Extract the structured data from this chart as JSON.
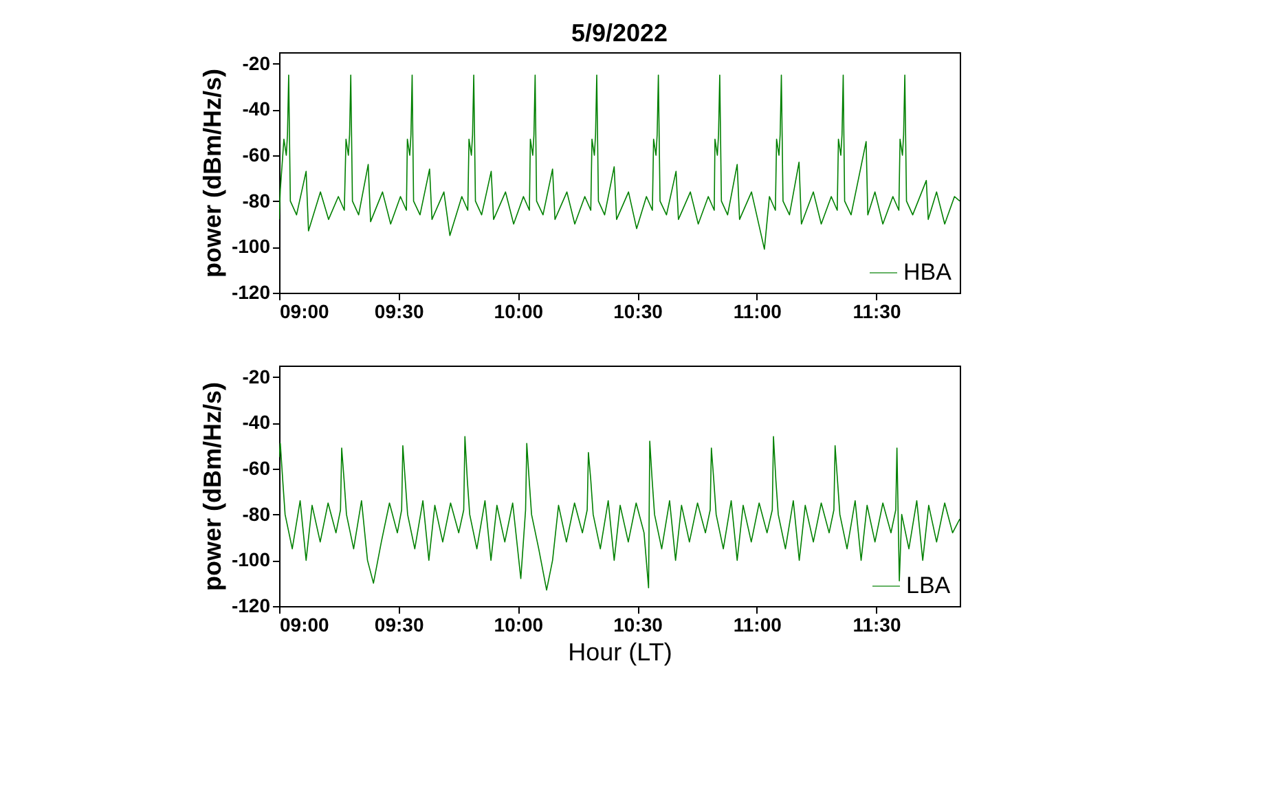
{
  "chart_data": [
    {
      "type": "line",
      "title": "5/9/2022",
      "ylabel": "power (dBm/Hz/s)",
      "legend": "bottom right",
      "xlim": [
        9,
        11.85
      ],
      "ylim": [
        -120,
        -15
      ],
      "xticks": [
        {
          "value": 9,
          "label": "09:00"
        },
        {
          "value": 9.5,
          "label": "09:30"
        },
        {
          "value": 10,
          "label": "10:00"
        },
        {
          "value": 10.5,
          "label": "10:30"
        },
        {
          "value": 11,
          "label": "11:00"
        },
        {
          "value": 11.5,
          "label": "11:30"
        }
      ],
      "yticks": [
        -120,
        -100,
        -80,
        -60,
        -40,
        -20
      ],
      "series": [
        {
          "name": "HBA",
          "color": "#008000",
          "x": [
            9.0,
            9.005,
            9.02,
            9.03,
            9.035,
            9.04,
            9.047,
            9.073,
            9.113,
            9.123,
            9.173,
            9.207,
            9.248,
            9.273,
            9.28,
            9.29,
            9.295,
            9.3,
            9.307,
            9.333,
            9.373,
            9.383,
            9.433,
            9.467,
            9.508,
            9.533,
            9.537,
            9.547,
            9.552,
            9.557,
            9.563,
            9.59,
            9.63,
            9.64,
            9.69,
            9.715,
            9.765,
            9.79,
            9.795,
            9.805,
            9.81,
            9.815,
            9.822,
            9.848,
            9.888,
            9.898,
            9.948,
            9.982,
            10.023,
            10.048,
            10.052,
            10.062,
            10.067,
            10.072,
            10.078,
            10.105,
            10.145,
            10.155,
            10.205,
            10.238,
            10.28,
            10.305,
            10.31,
            10.32,
            10.325,
            10.33,
            10.337,
            10.363,
            10.403,
            10.413,
            10.463,
            10.497,
            10.538,
            10.563,
            10.568,
            10.578,
            10.583,
            10.588,
            10.595,
            10.622,
            10.662,
            10.672,
            10.722,
            10.755,
            10.797,
            10.822,
            10.825,
            10.835,
            10.84,
            10.845,
            10.852,
            10.878,
            10.918,
            10.928,
            10.978,
            11.032,
            11.053,
            11.078,
            11.083,
            11.093,
            11.098,
            11.103,
            11.11,
            11.137,
            11.177,
            11.187,
            11.237,
            11.27,
            11.312,
            11.337,
            11.342,
            11.352,
            11.357,
            11.362,
            11.368,
            11.395,
            11.458,
            11.465,
            11.495,
            11.528,
            11.57,
            11.595,
            11.6,
            11.61,
            11.615,
            11.62,
            11.627,
            11.653,
            11.71,
            11.718,
            11.753,
            11.787,
            11.828,
            11.85
          ],
          "values": [
            -88,
            -75,
            -53,
            -60,
            -51,
            -25,
            -80,
            -86,
            -67,
            -93,
            -76,
            -88,
            -78,
            -84,
            -53,
            -60,
            -51,
            -25,
            -80,
            -86,
            -64,
            -89,
            -76,
            -90,
            -78,
            -84,
            -53,
            -60,
            -51,
            -25,
            -80,
            -86,
            -66,
            -88,
            -76,
            -95,
            -78,
            -84,
            -53,
            -60,
            -51,
            -25,
            -80,
            -86,
            -67,
            -88,
            -76,
            -90,
            -78,
            -84,
            -53,
            -60,
            -51,
            -25,
            -80,
            -86,
            -66,
            -88,
            -76,
            -90,
            -78,
            -84,
            -53,
            -60,
            -51,
            -25,
            -80,
            -86,
            -65,
            -88,
            -76,
            -92,
            -78,
            -84,
            -53,
            -60,
            -51,
            -25,
            -80,
            -86,
            -67,
            -88,
            -76,
            -90,
            -78,
            -84,
            -53,
            -60,
            -51,
            -25,
            -80,
            -86,
            -64,
            -88,
            -76,
            -101,
            -78,
            -84,
            -53,
            -60,
            -51,
            -25,
            -80,
            -86,
            -63,
            -90,
            -76,
            -90,
            -78,
            -84,
            -53,
            -60,
            -51,
            -25,
            -80,
            -86,
            -54,
            -86,
            -76,
            -90,
            -78,
            -84,
            -53,
            -60,
            -51,
            -25,
            -80,
            -86,
            -71,
            -88,
            -76,
            -90,
            -78,
            -80
          ]
        }
      ]
    },
    {
      "type": "line",
      "xlabel": "Hour (LT)",
      "ylabel": "power (dBm/Hz/s)",
      "legend": "bottom right",
      "xlim": [
        9,
        11.85
      ],
      "ylim": [
        -120,
        -15
      ],
      "xticks": [
        {
          "value": 9,
          "label": "09:00"
        },
        {
          "value": 9.5,
          "label": "09:30"
        },
        {
          "value": 10,
          "label": "10:00"
        },
        {
          "value": 10.5,
          "label": "10:30"
        },
        {
          "value": 11,
          "label": "11:00"
        },
        {
          "value": 11.5,
          "label": "11:30"
        }
      ],
      "yticks": [
        -120,
        -100,
        -80,
        -60,
        -40,
        -20
      ],
      "series": [
        {
          "name": "LBA",
          "color": "#008000",
          "x": [
            9.0,
            9.005,
            9.015,
            9.025,
            9.055,
            9.088,
            9.113,
            9.138,
            9.172,
            9.205,
            9.238,
            9.257,
            9.262,
            9.272,
            9.282,
            9.312,
            9.345,
            9.37,
            9.395,
            9.428,
            9.462,
            9.495,
            9.513,
            9.518,
            9.528,
            9.538,
            9.568,
            9.602,
            9.627,
            9.652,
            9.685,
            9.718,
            9.752,
            9.773,
            9.778,
            9.788,
            9.798,
            9.828,
            9.862,
            9.887,
            9.912,
            9.945,
            9.978,
            10.012,
            10.032,
            10.037,
            10.047,
            10.057,
            10.087,
            10.12,
            10.145,
            10.17,
            10.203,
            10.237,
            10.27,
            10.29,
            10.295,
            10.305,
            10.315,
            10.345,
            10.378,
            10.403,
            10.428,
            10.462,
            10.495,
            10.528,
            10.547,
            10.552,
            10.562,
            10.572,
            10.602,
            10.635,
            10.66,
            10.685,
            10.718,
            10.752,
            10.785,
            10.805,
            10.81,
            10.82,
            10.83,
            10.86,
            10.893,
            10.918,
            10.943,
            10.977,
            11.01,
            11.043,
            11.065,
            11.07,
            11.08,
            11.09,
            11.12,
            11.153,
            11.178,
            11.203,
            11.237,
            11.27,
            11.303,
            11.323,
            11.328,
            11.338,
            11.348,
            11.378,
            11.412,
            11.437,
            11.462,
            11.495,
            11.528,
            11.562,
            11.582,
            11.587,
            11.597,
            11.607,
            11.637,
            11.67,
            11.695,
            11.72,
            11.753,
            11.787,
            11.82,
            11.85
          ],
          "values": [
            -55,
            -49,
            -65,
            -80,
            -95,
            -74,
            -100,
            -76,
            -92,
            -75,
            -88,
            -78,
            -51,
            -65,
            -80,
            -95,
            -74,
            -100,
            -110,
            -92,
            -75,
            -88,
            -78,
            -50,
            -65,
            -80,
            -95,
            -74,
            -100,
            -76,
            -92,
            -75,
            -88,
            -78,
            -46,
            -65,
            -80,
            -95,
            -74,
            -100,
            -76,
            -92,
            -75,
            -108,
            -78,
            -49,
            -65,
            -80,
            -95,
            -113,
            -100,
            -76,
            -92,
            -75,
            -88,
            -78,
            -53,
            -65,
            -80,
            -95,
            -74,
            -100,
            -76,
            -92,
            -75,
            -88,
            -112,
            -48,
            -65,
            -80,
            -95,
            -74,
            -100,
            -76,
            -92,
            -75,
            -88,
            -78,
            -51,
            -65,
            -80,
            -95,
            -74,
            -100,
            -76,
            -92,
            -75,
            -88,
            -78,
            -46,
            -65,
            -80,
            -95,
            -74,
            -100,
            -76,
            -92,
            -75,
            -88,
            -78,
            -50,
            -65,
            -80,
            -95,
            -74,
            -100,
            -76,
            -92,
            -75,
            -88,
            -78,
            -51,
            -109,
            -80,
            -95,
            -74,
            -100,
            -76,
            -92,
            -75,
            -88,
            -82
          ]
        }
      ]
    }
  ]
}
